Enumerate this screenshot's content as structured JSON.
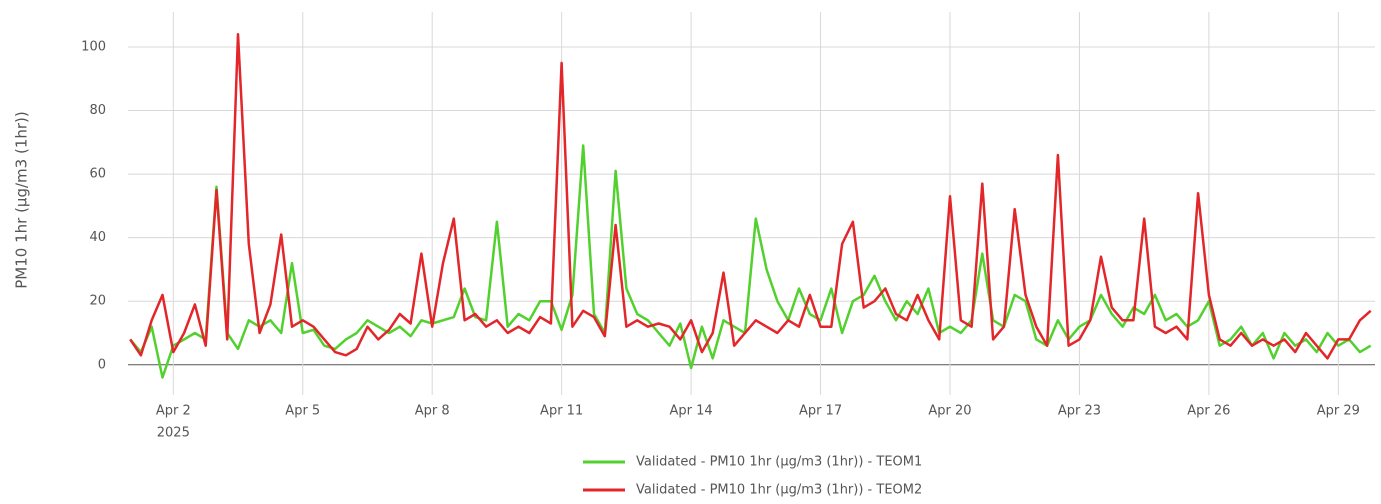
{
  "chart_data": {
    "type": "line",
    "y_label": "PM10 1hr (µg/m3 (1hr))",
    "x": [
      1,
      1.25,
      1.5,
      1.75,
      2,
      2.25,
      2.5,
      2.75,
      3,
      3.25,
      3.5,
      3.75,
      4,
      4.25,
      4.5,
      4.75,
      5,
      5.25,
      5.5,
      5.75,
      6,
      6.25,
      6.5,
      6.75,
      7,
      7.25,
      7.5,
      7.75,
      8,
      8.25,
      8.5,
      8.75,
      9,
      9.25,
      9.5,
      9.75,
      10,
      10.25,
      10.5,
      10.75,
      11,
      11.25,
      11.5,
      11.75,
      12,
      12.25,
      12.5,
      12.75,
      13,
      13.25,
      13.5,
      13.75,
      14,
      14.25,
      14.5,
      14.75,
      15,
      15.25,
      15.5,
      15.75,
      16,
      16.25,
      16.5,
      16.75,
      17,
      17.25,
      17.5,
      17.75,
      18,
      18.25,
      18.5,
      18.75,
      19,
      19.25,
      19.5,
      19.75,
      20,
      20.25,
      20.5,
      20.75,
      21,
      21.25,
      21.5,
      21.75,
      22,
      22.25,
      22.5,
      22.75,
      23,
      23.25,
      23.5,
      23.75,
      24,
      24.25,
      24.5,
      24.75,
      25,
      25.25,
      25.5,
      25.75,
      26,
      26.25,
      26.5,
      26.75,
      27,
      27.25,
      27.5,
      27.75,
      28,
      28.25,
      28.5,
      28.75,
      29,
      29.25,
      29.5,
      29.75
    ],
    "series": [
      {
        "name": "Validated - PM10 1hr (µg/m3 (1hr)) - TEOM1",
        "color": "#52d12e",
        "values": [
          8,
          4,
          12,
          -4,
          6,
          8,
          10,
          8,
          56,
          10,
          5,
          14,
          12,
          14,
          10,
          32,
          10,
          11,
          6,
          5,
          8,
          10,
          14,
          12,
          10,
          12,
          9,
          14,
          13,
          14,
          15,
          24,
          15,
          14,
          45,
          12,
          16,
          14,
          20,
          20,
          11,
          22,
          69,
          16,
          10,
          61,
          24,
          16,
          14,
          10,
          6,
          13,
          -1,
          12,
          2,
          14,
          12,
          10,
          46,
          30,
          20,
          14,
          24,
          16,
          14,
          24,
          10,
          20,
          22,
          28,
          20,
          14,
          20,
          16,
          24,
          10,
          12,
          10,
          14,
          35,
          14,
          12,
          22,
          20,
          8,
          6,
          14,
          8,
          12,
          14,
          22,
          16,
          12,
          18,
          16,
          22,
          14,
          16,
          12,
          14,
          20,
          6,
          8,
          12,
          6,
          10,
          2,
          10,
          6,
          8,
          4,
          10,
          6,
          8,
          4,
          6
        ]
      },
      {
        "name": "Validated - PM10 1hr (µg/m3 (1hr)) - TEOM2",
        "color": "#e3262a",
        "values": [
          8,
          3,
          14,
          22,
          4,
          10,
          19,
          6,
          55,
          8,
          104,
          38,
          10,
          19,
          41,
          12,
          14,
          12,
          8,
          4,
          3,
          5,
          12,
          8,
          11,
          16,
          13,
          35,
          12,
          32,
          46,
          14,
          16,
          12,
          14,
          10,
          12,
          10,
          15,
          13,
          95,
          12,
          17,
          15,
          9,
          44,
          12,
          14,
          12,
          13,
          12,
          8,
          14,
          4,
          10,
          29,
          6,
          10,
          14,
          12,
          10,
          14,
          12,
          22,
          12,
          12,
          38,
          45,
          18,
          20,
          24,
          16,
          14,
          22,
          14,
          8,
          53,
          14,
          12,
          57,
          8,
          12,
          49,
          22,
          12,
          6,
          66,
          6,
          8,
          14,
          34,
          18,
          14,
          14,
          46,
          12,
          10,
          12,
          8,
          54,
          22,
          8,
          6,
          10,
          6,
          8,
          6,
          8,
          4,
          10,
          6,
          2,
          8,
          8,
          14,
          17
        ]
      }
    ],
    "xlim": [
      0.95,
      29.85
    ],
    "xticks": [
      {
        "value": 2,
        "label": "Apr 2"
      },
      {
        "value": 5,
        "label": "Apr 5"
      },
      {
        "value": 8,
        "label": "Apr 8"
      },
      {
        "value": 11,
        "label": "Apr 11"
      },
      {
        "value": 14,
        "label": "Apr 14"
      },
      {
        "value": 17,
        "label": "Apr 17"
      },
      {
        "value": 20,
        "label": "Apr 20"
      },
      {
        "value": 23,
        "label": "Apr 23"
      },
      {
        "value": 26,
        "label": "Apr 26"
      },
      {
        "value": 29,
        "label": "Apr 29"
      }
    ],
    "x_year_label": "2025",
    "ylim": [
      -9.5,
      111
    ],
    "yticks": [
      0,
      20,
      40,
      60,
      80,
      100
    ],
    "grid": true
  }
}
